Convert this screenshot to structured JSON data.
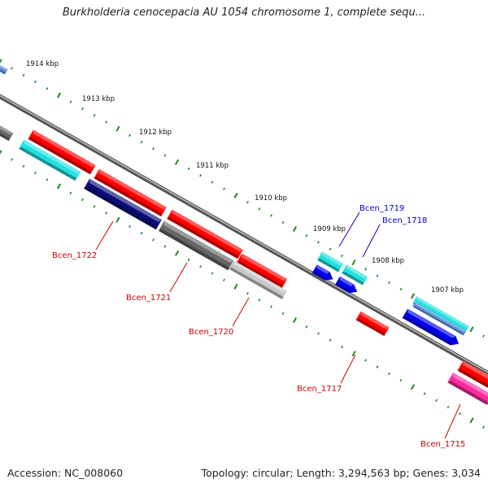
{
  "title": "Burkholderia cenocepacia AU 1054 chromosome 1, complete sequ...",
  "footer": {
    "accession": "Accession: NC_008060",
    "summary": "Topology: circular; Length: 3,294,563 bp; Genes: 3,034"
  },
  "tick_labels": [
    "1914 kbp",
    "1913 kbp",
    "1912 kbp",
    "1911 kbp",
    "1910 kbp",
    "1909 kbp",
    "1908 kbp",
    "1907 kbp"
  ],
  "gene_labels": [
    {
      "name": "Bcen_1722",
      "color": "#cc0000"
    },
    {
      "name": "Bcen_1721",
      "color": "#cc0000"
    },
    {
      "name": "Bcen_1720",
      "color": "#cc0000"
    },
    {
      "name": "Bcen_1717",
      "color": "#cc0000"
    },
    {
      "name": "Bcen_1715",
      "color": "#cc0000"
    },
    {
      "name": "Bcen_1719",
      "color": "#0000cc"
    },
    {
      "name": "Bcen_1718",
      "color": "#0000cc"
    }
  ],
  "colors": {
    "red": "#ff0000",
    "cyan": "#22e0e0",
    "navy": "#0b0b78",
    "gray": "#666666",
    "lightgray": "#c8c8c8",
    "blue": "#0000ee",
    "pink": "#ff2aa0",
    "steelblue": "#5a8fd6",
    "backbone": "#8a8a8a",
    "tick": "#1a8a1a"
  }
}
